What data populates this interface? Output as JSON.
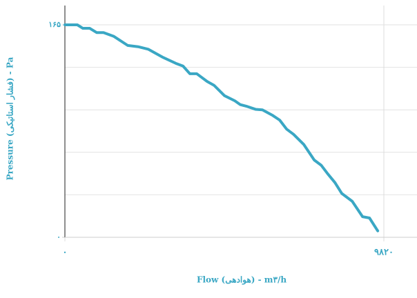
{
  "chart_data": {
    "type": "line",
    "xlabel": "Flow (هوادهی) - m۳/h",
    "ylabel": "Pressure (فشار استاتیکی) - Pa",
    "x": [
      0,
      383,
      553,
      765,
      978,
      1190,
      1509,
      1934,
      2253,
      2572,
      2998,
      3423,
      3636,
      3848,
      4061,
      4380,
      4593,
      4912,
      5231,
      5401,
      5613,
      5869,
      6081,
      6400,
      6613,
      6826,
      7038,
      7357,
      7676,
      7889,
      8101,
      8314,
      8526,
      8845,
      9164,
      9377,
      9631
    ],
    "series": [
      {
        "color": "#3aa7c4",
        "values": [
          165,
          165,
          162.3,
          162.3,
          159,
          159,
          156,
          149,
          148,
          146,
          140,
          135,
          133,
          127,
          127,
          121,
          118,
          110,
          106,
          103,
          101.6,
          99.4,
          99,
          94.6,
          91,
          84,
          80,
          72,
          60,
          56,
          49,
          42.5,
          34,
          28,
          16,
          15,
          5
        ]
      }
    ],
    "xlim": [
      0,
      10840
    ],
    "ylim": [
      0,
      180
    ],
    "xticks": [
      {
        "value": 0,
        "label": "۰"
      },
      {
        "value": 9820,
        "label": "۹۸۲۰"
      }
    ],
    "yticks": [
      {
        "value": 0,
        "label": "۰"
      },
      {
        "value": 165,
        "label": "۱۶۵"
      }
    ],
    "ygrid": [
      33,
      66,
      99,
      132,
      165
    ],
    "grid": true
  }
}
